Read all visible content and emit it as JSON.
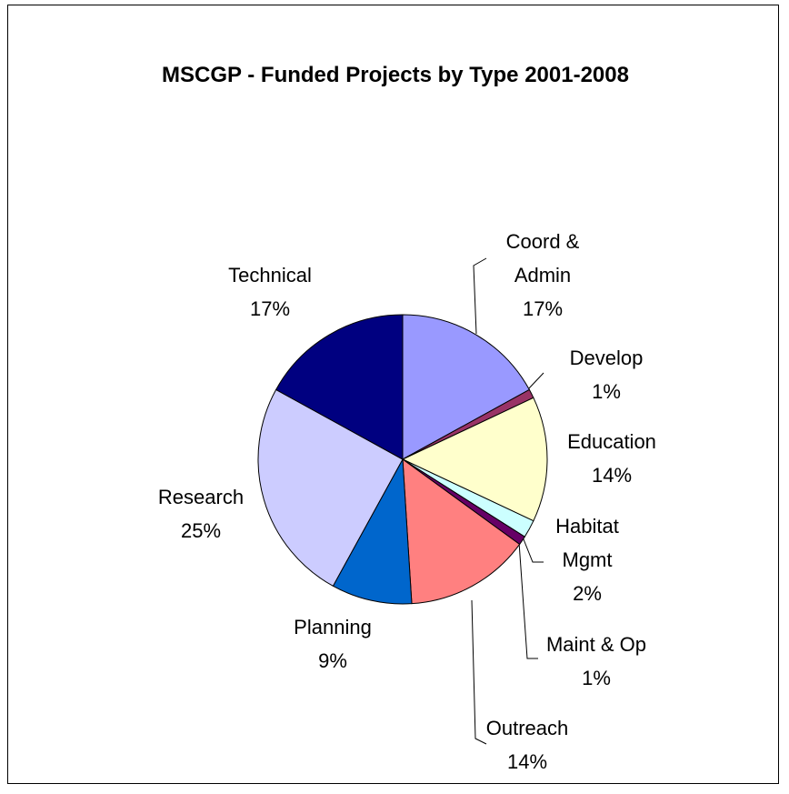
{
  "chart_data": {
    "type": "pie",
    "title": "MSCGP - Funded Projects by Type 2001-2008",
    "categories": [
      "Coord & Admin",
      "Develop",
      "Education",
      "Habitat Mgmt",
      "Maint & Op",
      "Outreach",
      "Planning",
      "Research",
      "Technical"
    ],
    "values": [
      17,
      1,
      14,
      2,
      1,
      14,
      9,
      25,
      17
    ],
    "value_labels": [
      "17%",
      "1%",
      "14%",
      "2%",
      "1%",
      "14%",
      "9%",
      "25%",
      "17%"
    ],
    "colors": [
      "#9999ff",
      "#993366",
      "#ffffcc",
      "#ccffff",
      "#660066",
      "#ff8080",
      "#0066cc",
      "#ccccff",
      "#000080"
    ]
  }
}
